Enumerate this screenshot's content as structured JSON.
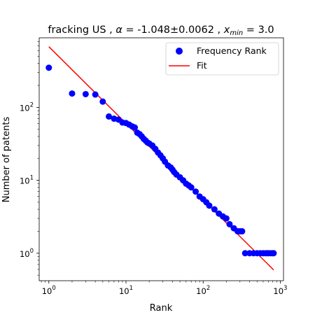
{
  "chart_data": {
    "type": "scatter",
    "title_prefix": "fracking US , ",
    "title_alpha": "α",
    "title_alpha_value": " = -1.048±0.0062 , ",
    "title_xmin": "x",
    "title_xmin_sub": "min",
    "title_xmin_value": " = 3.0",
    "xlabel": "Rank",
    "ylabel": "Number of patents",
    "x_scale": "log",
    "y_scale": "log",
    "xlim": [
      0.75,
      1100
    ],
    "ylim": [
      0.42,
      900
    ],
    "grid": false,
    "legend_position": "top-right",
    "x_ticks": [
      {
        "value": 1,
        "base": "10",
        "exp": "0"
      },
      {
        "value": 10,
        "base": "10",
        "exp": "1"
      },
      {
        "value": 100,
        "base": "10",
        "exp": "2"
      },
      {
        "value": 1000,
        "base": "10",
        "exp": "3"
      }
    ],
    "y_ticks": [
      {
        "value": 1,
        "base": "10",
        "exp": "0"
      },
      {
        "value": 10,
        "base": "10",
        "exp": "1"
      },
      {
        "value": 100,
        "base": "10",
        "exp": "2"
      }
    ],
    "series": [
      {
        "name": "Frequency Rank",
        "kind": "scatter",
        "color": "#0000ff",
        "points": [
          [
            1,
            350
          ],
          [
            2,
            155
          ],
          [
            3,
            152
          ],
          [
            4,
            150
          ],
          [
            5,
            120
          ],
          [
            6,
            75
          ],
          [
            7,
            70
          ],
          [
            8,
            68
          ],
          [
            9,
            62
          ],
          [
            10,
            61
          ],
          [
            11,
            58
          ],
          [
            12,
            55
          ],
          [
            13,
            53
          ],
          [
            14,
            45
          ],
          [
            15,
            43
          ],
          [
            16,
            40
          ],
          [
            17,
            37
          ],
          [
            18,
            35
          ],
          [
            19,
            33
          ],
          [
            20,
            32
          ],
          [
            22,
            30
          ],
          [
            24,
            27
          ],
          [
            26,
            24
          ],
          [
            28,
            22
          ],
          [
            30,
            20
          ],
          [
            32,
            18
          ],
          [
            35,
            16
          ],
          [
            38,
            15
          ],
          [
            40,
            14
          ],
          [
            42,
            13
          ],
          [
            45,
            12
          ],
          [
            50,
            11
          ],
          [
            55,
            10
          ],
          [
            60,
            9
          ],
          [
            65,
            8.5
          ],
          [
            70,
            8
          ],
          [
            80,
            7
          ],
          [
            90,
            6
          ],
          [
            100,
            5.5
          ],
          [
            110,
            5
          ],
          [
            120,
            4.5
          ],
          [
            140,
            4
          ],
          [
            160,
            3.5
          ],
          [
            180,
            3.2
          ],
          [
            200,
            3
          ],
          [
            220,
            2.5
          ],
          [
            250,
            2.2
          ],
          [
            280,
            2
          ],
          [
            300,
            2
          ],
          [
            320,
            2
          ],
          [
            350,
            1
          ],
          [
            400,
            1
          ],
          [
            450,
            1
          ],
          [
            500,
            1
          ],
          [
            550,
            1
          ],
          [
            600,
            1
          ],
          [
            650,
            1
          ],
          [
            700,
            1
          ],
          [
            750,
            1
          ],
          [
            800,
            1
          ],
          [
            820,
            1
          ]
        ]
      },
      {
        "name": "Fit",
        "kind": "line",
        "color": "#ff0000",
        "points": [
          [
            1,
            680
          ],
          [
            820,
            0.59
          ]
        ]
      }
    ]
  }
}
